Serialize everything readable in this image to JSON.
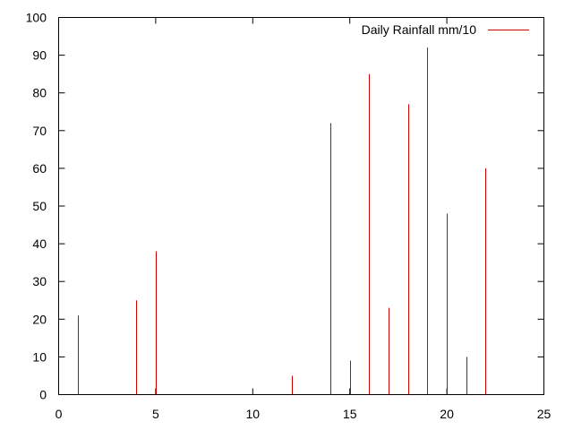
{
  "chart_data": {
    "type": "bar",
    "style": "impulses",
    "title": "",
    "xlabel": "",
    "ylabel": "",
    "xlim": [
      0,
      25
    ],
    "ylim": [
      0,
      100
    ],
    "xticks": [
      0,
      5,
      10,
      15,
      20,
      25
    ],
    "yticks": [
      0,
      10,
      20,
      30,
      40,
      50,
      60,
      70,
      80,
      90,
      100
    ],
    "grid": false,
    "legend_position": "top-right",
    "series": [
      {
        "name": "Daily Rainfall mm/10",
        "color": "#cc0000",
        "x": [
          1,
          4,
          5,
          12,
          14,
          15,
          16,
          17,
          18,
          19,
          20,
          21,
          22
        ],
        "y": [
          21,
          25,
          38,
          5,
          72,
          9,
          85,
          23,
          77,
          92,
          48,
          10,
          60
        ]
      }
    ]
  }
}
